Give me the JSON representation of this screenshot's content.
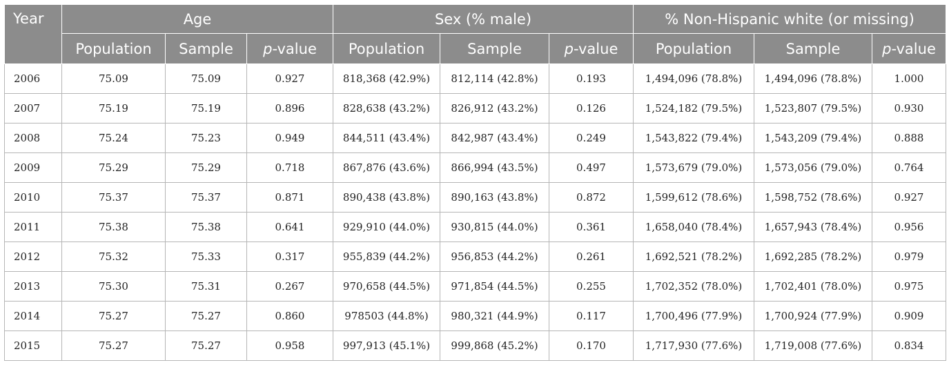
{
  "headers": {
    "year": "Year",
    "groups": [
      "Age",
      "Sex (% male)",
      "% Non-Hispanic white (or missing)"
    ],
    "population": "Population",
    "sample": "Sample",
    "p_italic": "p",
    "p_rest": "-value"
  },
  "rows": [
    [
      "2006",
      "75.09",
      "75.09",
      "0.927",
      "818,368 (42.9%)",
      "812,114 (42.8%)",
      "0.193",
      "1,494,096 (78.8%)",
      "1,494,096 (78.8%)",
      "1.000"
    ],
    [
      "2007",
      "75.19",
      "75.19",
      "0.896",
      "828,638 (43.2%)",
      "826,912 (43.2%)",
      "0.126",
      "1,524,182 (79.5%)",
      "1,523,807 (79.5%)",
      "0.930"
    ],
    [
      "2008",
      "75.24",
      "75.23",
      "0.949",
      "844,511 (43.4%)",
      "842,987 (43.4%)",
      "0.249",
      "1,543,822 (79.4%)",
      "1,543,209 (79.4%)",
      "0.888"
    ],
    [
      "2009",
      "75.29",
      "75.29",
      "0.718",
      "867,876 (43.6%)",
      "866,994 (43.5%)",
      "0.497",
      "1,573,679 (79.0%)",
      "1,573,056 (79.0%)",
      "0.764"
    ],
    [
      "2010",
      "75.37",
      "75.37",
      "0.871",
      "890,438 (43.8%)",
      "890,163 (43.8%)",
      "0.872",
      "1,599,612 (78.6%)",
      "1,598,752 (78.6%)",
      "0.927"
    ],
    [
      "2011",
      "75.38",
      "75.38",
      "0.641",
      "929,910 (44.0%)",
      "930,815 (44.0%)",
      "0.361",
      "1,658,040 (78.4%)",
      "1,657,943 (78.4%)",
      "0.956"
    ],
    [
      "2012",
      "75.32",
      "75.33",
      "0.317",
      "955,839 (44.2%)",
      "956,853 (44.2%)",
      "0.261",
      "1,692,521 (78.2%)",
      "1,692,285 (78.2%)",
      "0.979"
    ],
    [
      "2013",
      "75.30",
      "75.31",
      "0.267",
      "970,658 (44.5%)",
      "971,854 (44.5%)",
      "0.255",
      "1,702,352 (78.0%)",
      "1,702,401 (78.0%)",
      "0.975"
    ],
    [
      "2014",
      "75.27",
      "75.27",
      "0.860",
      "978503 (44.8%)",
      "980,321 (44.9%)",
      "0.117",
      "1,700,496 (77.9%)",
      "1,700,924 (77.9%)",
      "0.909"
    ],
    [
      "2015",
      "75.27",
      "75.27",
      "0.958",
      "997,913 (45.1%)",
      "999,868 (45.2%)",
      "0.170",
      "1,717,930 (77.6%)",
      "1,719,008 (77.6%)",
      "0.834"
    ]
  ]
}
